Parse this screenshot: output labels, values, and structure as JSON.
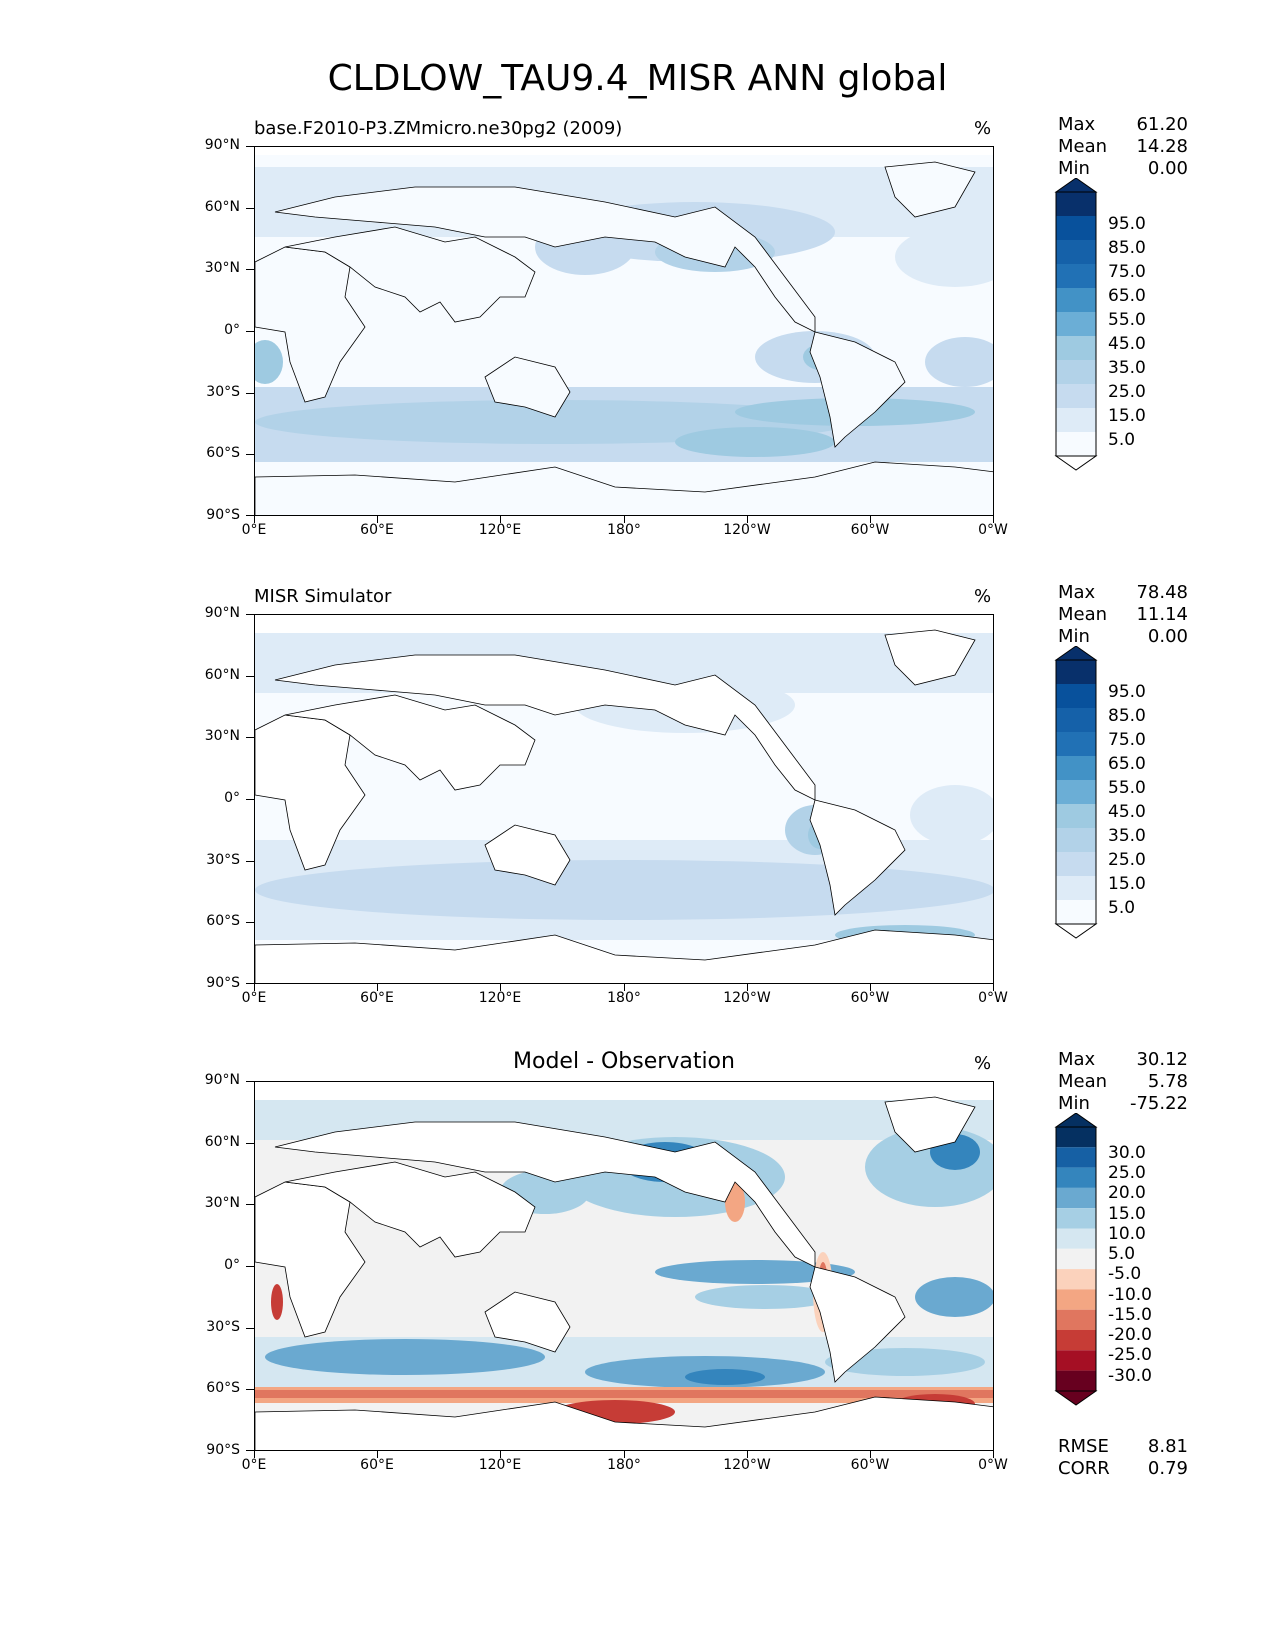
{
  "figure": {
    "title": "CLDLOW_TAU9.4_MISR ANN global"
  },
  "colors": {
    "blues": [
      "#f7fbff",
      "#deebf7",
      "#c6dbef",
      "#b2d2e8",
      "#9ecae1",
      "#6baed6",
      "#4292c6",
      "#2171b5",
      "#1561a9",
      "#08519c",
      "#08306b"
    ],
    "diff": [
      "#67001f",
      "#a50f24",
      "#c63c36",
      "#e0765f",
      "#f3a683",
      "#fbd2bc",
      "#f2f2f2",
      "#d5e7f1",
      "#a6cfe4",
      "#6aa9d0",
      "#3485bd",
      "#1660a4",
      "#053061"
    ]
  },
  "axes": {
    "y_ticks": [
      "90°N",
      "60°N",
      "30°N",
      "0°",
      "30°S",
      "60°S",
      "90°S"
    ],
    "x_ticks": [
      "0°E",
      "60°E",
      "120°E",
      "180°",
      "120°W",
      "60°W",
      "0°W"
    ]
  },
  "panels": [
    {
      "title": "base.F2010-P3.ZMmicro.ne30pg2 (2009)",
      "units": "%",
      "stats": [
        {
          "label": "Max",
          "value": "61.20"
        },
        {
          "label": "Mean",
          "value": "14.28"
        },
        {
          "label": "Min",
          "value": "0.00"
        }
      ],
      "colorbar_labels": [
        "95.0",
        "85.0",
        "75.0",
        "65.0",
        "55.0",
        "45.0",
        "35.0",
        "25.0",
        "15.0",
        "5.0"
      ]
    },
    {
      "title": "MISR Simulator",
      "units": "%",
      "stats": [
        {
          "label": "Max",
          "value": "78.48"
        },
        {
          "label": "Mean",
          "value": "11.14"
        },
        {
          "label": "Min",
          "value": "0.00"
        }
      ],
      "colorbar_labels": [
        "95.0",
        "85.0",
        "75.0",
        "65.0",
        "55.0",
        "45.0",
        "35.0",
        "25.0",
        "15.0",
        "5.0"
      ]
    },
    {
      "title": "Model - Observation",
      "units": "%",
      "stats": [
        {
          "label": "Max",
          "value": "30.12"
        },
        {
          "label": "Mean",
          "value": "5.78"
        },
        {
          "label": "Min",
          "value": "-75.22"
        }
      ],
      "colorbar_labels": [
        "30.0",
        "25.0",
        "20.0",
        "15.0",
        "10.0",
        "5.0",
        "-5.0",
        "-10.0",
        "-15.0",
        "-20.0",
        "-25.0",
        "-30.0"
      ],
      "metrics": [
        {
          "label": "RMSE",
          "value": "8.81"
        },
        {
          "label": "CORR",
          "value": "0.79"
        }
      ]
    }
  ]
}
